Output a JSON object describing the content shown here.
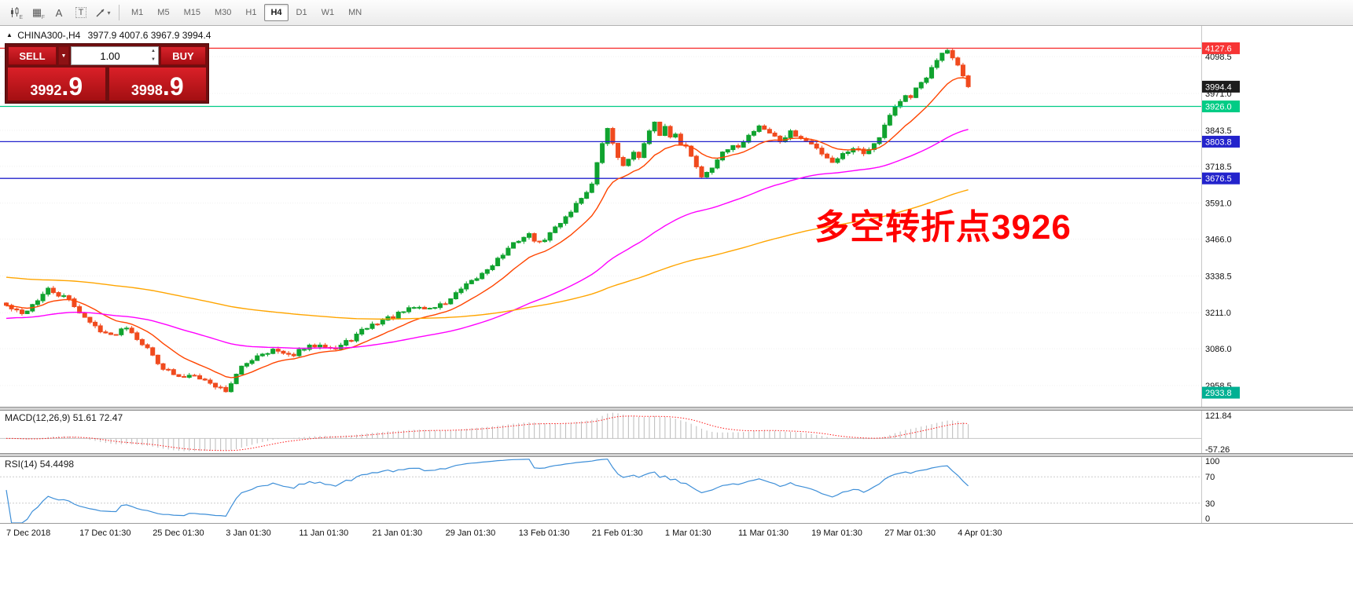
{
  "toolbar": {
    "icon_buttons": [
      {
        "name": "candlestick-chart-icon",
        "sub": "E"
      },
      {
        "name": "grid-icon",
        "glyph": "▦",
        "sub": "F"
      },
      {
        "name": "text-label-icon",
        "glyph": "A"
      },
      {
        "name": "text-box-icon",
        "glyph": "T"
      },
      {
        "name": "drawing-tools-icon",
        "caret": "▾"
      }
    ],
    "timeframes": [
      "M1",
      "M5",
      "M15",
      "M30",
      "H1",
      "H4",
      "D1",
      "W1",
      "MN"
    ],
    "active_timeframe": "H4"
  },
  "header": {
    "symbol": "CHINA300-,H4",
    "ohlc": "3977.9 4007.6 3967.9 3994.4"
  },
  "trade_panel": {
    "sell_label": "SELL",
    "buy_label": "BUY",
    "volume": "1.00",
    "bid_small": "3992",
    "bid_big": ".9",
    "ask_small": "3998",
    "ask_big": ".9"
  },
  "chart_data": {
    "type": "candlestick",
    "symbol": "CHINA300-",
    "timeframe": "H4",
    "ohlc_header": {
      "open": 3977.9,
      "high": 4007.6,
      "low": 3967.9,
      "close": 3994.4
    },
    "y_range": {
      "top": 4205,
      "bottom": 2885
    },
    "price_axis_ticks": [
      "4098.5",
      "3971.0",
      "3843.5",
      "3718.5",
      "3591.0",
      "3466.0",
      "3338.5",
      "3211.0",
      "3086.0",
      "2958.5"
    ],
    "price_markers": [
      {
        "label": "4127.6",
        "price": 4127.6,
        "line": true,
        "color_key": "marker_red"
      },
      {
        "label": "3994.4",
        "price": 3994.4,
        "line": false,
        "color_key": "badge_black"
      },
      {
        "label": "3926.0",
        "price": 3926.0,
        "line": true,
        "color_key": "marker_green"
      },
      {
        "label": "3803.8",
        "price": 3803.8,
        "line": true,
        "color_key": "marker_blue"
      },
      {
        "label": "3676.5",
        "price": 3676.5,
        "line": true,
        "color_key": "marker_blue"
      },
      {
        "label": "2933.8",
        "price": 2933.8,
        "line": false,
        "color_key": "badge_teal"
      }
    ],
    "time_labels": [
      "7 Dec 2018",
      "17 Dec 01:30",
      "25 Dec 01:30",
      "3 Jan 01:30",
      "11 Jan 01:30",
      "21 Jan 01:30",
      "29 Jan 01:30",
      "13 Feb 01:30",
      "21 Feb 01:30",
      "1 Mar 01:30",
      "11 Mar 01:30",
      "19 Mar 01:30",
      "27 Mar 01:30",
      "4 Apr 01:30"
    ],
    "candles": {
      "count": 185,
      "noise_seed": 42,
      "last_close": 3994.4,
      "high_cap": {
        "index": 180,
        "price": 4127.6
      },
      "low_floor": {
        "index": 42,
        "price": 2933.8
      },
      "path": [
        [
          0,
          3235
        ],
        [
          3,
          3205
        ],
        [
          8,
          3290
        ],
        [
          12,
          3255
        ],
        [
          16,
          3175
        ],
        [
          20,
          3130
        ],
        [
          23,
          3165
        ],
        [
          27,
          3085
        ],
        [
          30,
          3020
        ],
        [
          33,
          2985
        ],
        [
          36,
          3000
        ],
        [
          39,
          2965
        ],
        [
          42,
          2942
        ],
        [
          45,
          3020
        ],
        [
          48,
          3065
        ],
        [
          51,
          3082
        ],
        [
          54,
          3060
        ],
        [
          57,
          3085
        ],
        [
          60,
          3105
        ],
        [
          63,
          3085
        ],
        [
          66,
          3120
        ],
        [
          69,
          3160
        ],
        [
          72,
          3185
        ],
        [
          75,
          3205
        ],
        [
          78,
          3230
        ],
        [
          81,
          3225
        ],
        [
          84,
          3245
        ],
        [
          87,
          3290
        ],
        [
          90,
          3330
        ],
        [
          93,
          3380
        ],
        [
          96,
          3430
        ],
        [
          98,
          3465
        ],
        [
          100,
          3480
        ],
        [
          102,
          3450
        ],
        [
          104,
          3485
        ],
        [
          106,
          3525
        ],
        [
          108,
          3565
        ],
        [
          110,
          3610
        ],
        [
          112,
          3655
        ],
        [
          113,
          3725
        ],
        [
          114,
          3800
        ],
        [
          115,
          3845
        ],
        [
          116,
          3800
        ],
        [
          117,
          3755
        ],
        [
          118,
          3715
        ],
        [
          119,
          3745
        ],
        [
          120,
          3775
        ],
        [
          121,
          3745
        ],
        [
          122,
          3795
        ],
        [
          123,
          3835
        ],
        [
          124,
          3865
        ],
        [
          125,
          3830
        ],
        [
          126,
          3855
        ],
        [
          127,
          3820
        ],
        [
          128,
          3835
        ],
        [
          129,
          3800
        ],
        [
          130,
          3785
        ],
        [
          131,
          3750
        ],
        [
          132,
          3720
        ],
        [
          133,
          3685
        ],
        [
          134,
          3700
        ],
        [
          135,
          3720
        ],
        [
          136,
          3745
        ],
        [
          137,
          3760
        ],
        [
          138,
          3775
        ],
        [
          140,
          3790
        ],
        [
          142,
          3825
        ],
        [
          144,
          3860
        ],
        [
          146,
          3835
        ],
        [
          148,
          3805
        ],
        [
          150,
          3835
        ],
        [
          152,
          3815
        ],
        [
          154,
          3795
        ],
        [
          156,
          3765
        ],
        [
          158,
          3735
        ],
        [
          160,
          3760
        ],
        [
          162,
          3785
        ],
        [
          164,
          3765
        ],
        [
          166,
          3800
        ],
        [
          167,
          3825
        ],
        [
          168,
          3860
        ],
        [
          169,
          3900
        ],
        [
          170,
          3925
        ],
        [
          171,
          3945
        ],
        [
          172,
          3960
        ],
        [
          173,
          3950
        ],
        [
          174,
          3985
        ],
        [
          175,
          4010
        ],
        [
          176,
          4030
        ],
        [
          177,
          4055
        ],
        [
          178,
          4085
        ],
        [
          179,
          4105
        ],
        [
          180,
          4115
        ],
        [
          181,
          4095
        ],
        [
          182,
          4075
        ],
        [
          183,
          4030
        ],
        [
          184,
          3994.4
        ]
      ]
    },
    "moving_averages": [
      {
        "period": 13,
        "seed": 3235,
        "color_key": "ma_fast_color"
      },
      {
        "period": 60,
        "seed": 3190,
        "color_key": "ma_mid_color"
      },
      {
        "period": 150,
        "seed": 3335,
        "color_key": "ma_slow_color"
      }
    ],
    "macd": {
      "label": "MACD(12,26,9)",
      "values_text": "51.61 72.47",
      "axis_max": "121.84",
      "axis_min": "-57.26"
    },
    "rsi": {
      "label": "RSI(14)",
      "value_text": "54.4498",
      "axis": [
        "100",
        "70",
        "30",
        "0"
      ],
      "levels": [
        70,
        30
      ]
    },
    "annotation": {
      "text": "多空转折点3926",
      "color": "#ff0000"
    },
    "style": {
      "up_color": "#10A32F",
      "down_color": "#F04A1E",
      "ma_fast_color": "#FF4500",
      "ma_mid_color": "#FF00FF",
      "ma_slow_color": "#FFA500",
      "macd_hist_color": "#BBBBBB",
      "macd_signal_color": "#FF1A1A",
      "rsi_color": "#3E8FD8",
      "marker_red": "#F73535",
      "marker_green": "#00CC85",
      "marker_blue": "#2323CC",
      "badge_black": "#1C1C1C",
      "badge_teal": "#00B093"
    }
  }
}
